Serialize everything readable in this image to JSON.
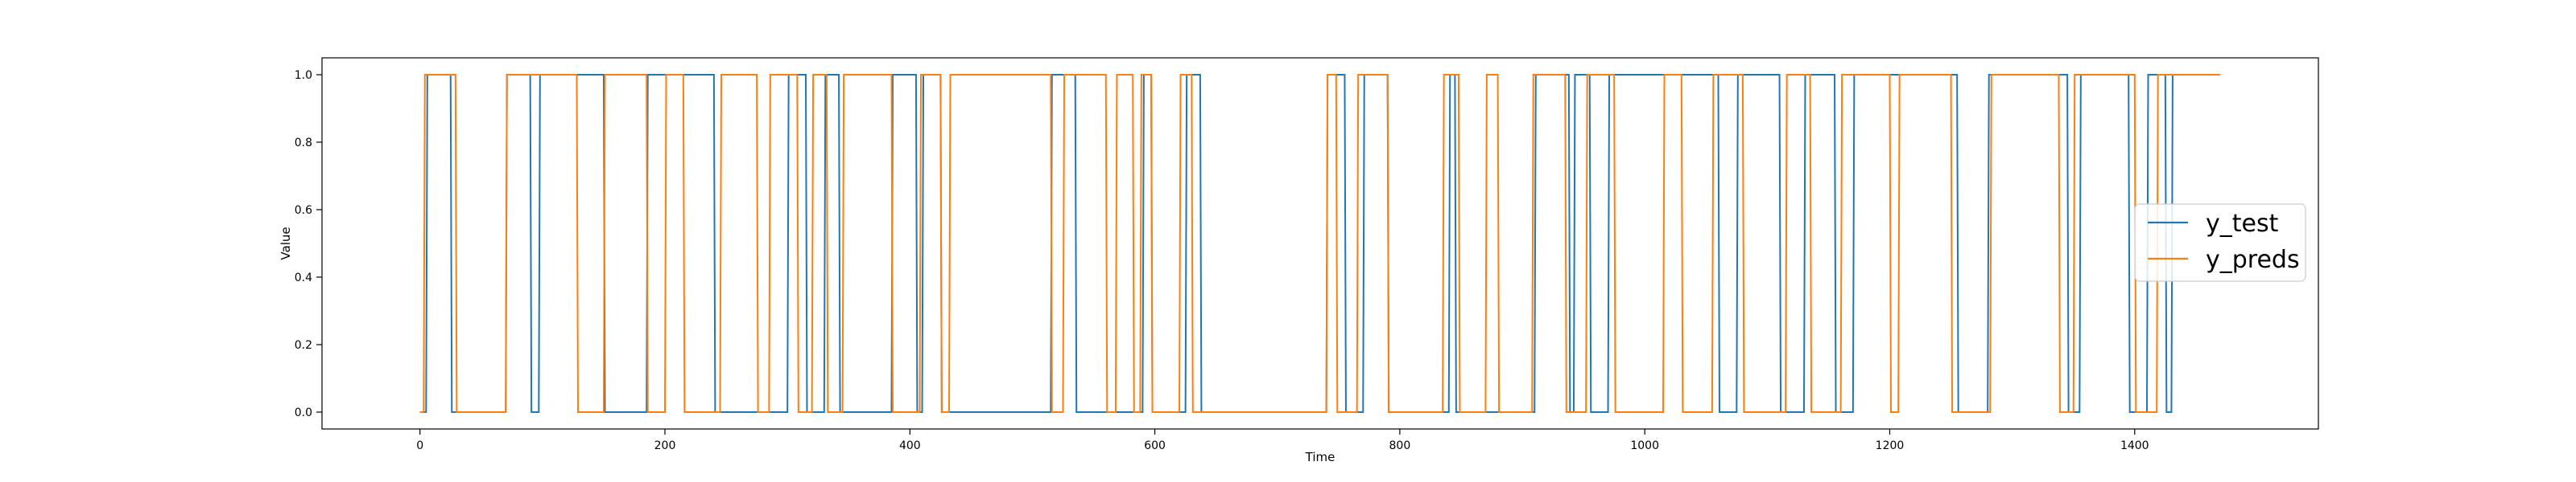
{
  "chart_data": {
    "type": "line",
    "xlabel": "Time",
    "ylabel": "Value",
    "xlim": [
      -80,
      1550
    ],
    "ylim": [
      -0.05,
      1.05
    ],
    "xticks": [
      0,
      200,
      400,
      600,
      800,
      1000,
      1200,
      1400
    ],
    "xtick_labels": [
      "0",
      "200",
      "400",
      "600",
      "800",
      "1000",
      "1200",
      "1400"
    ],
    "yticks": [
      0.0,
      0.2,
      0.4,
      0.6,
      0.8,
      1.0
    ],
    "ytick_labels": [
      "0.0",
      "0.2",
      "0.4",
      "0.6",
      "0.8",
      "1.0"
    ],
    "grid": false,
    "legend_position": "center-right",
    "series": [
      {
        "name": "y_test",
        "color": "#1f77b4",
        "x": [
          0,
          5,
          6,
          25,
          26,
          70,
          71,
          90,
          91,
          97,
          98,
          110,
          111,
          150,
          151,
          185,
          186,
          240,
          241,
          300,
          301,
          315,
          316,
          330,
          331,
          342,
          343,
          385,
          386,
          405,
          406,
          410,
          411,
          425,
          426,
          515,
          516,
          535,
          536,
          590,
          591,
          597,
          598,
          625,
          626,
          637,
          638,
          740,
          741,
          755,
          756,
          770,
          771,
          790,
          791,
          840,
          841,
          845,
          846,
          910,
          911,
          938,
          939,
          942,
          943,
          955,
          956,
          970,
          971,
          1060,
          1061,
          1075,
          1076,
          1110,
          1111,
          1130,
          1131,
          1155,
          1156,
          1170,
          1171,
          1255,
          1256,
          1280,
          1281,
          1345,
          1346,
          1355,
          1356,
          1395,
          1396,
          1410,
          1411,
          1425,
          1426,
          1430,
          1431
        ],
        "y": [
          0,
          0,
          1,
          1,
          0,
          0,
          1,
          1,
          0,
          0,
          1,
          1,
          1,
          1,
          0,
          0,
          1,
          1,
          0,
          0,
          1,
          1,
          0,
          0,
          1,
          1,
          0,
          0,
          1,
          1,
          0,
          0,
          1,
          1,
          0,
          0,
          1,
          1,
          0,
          0,
          1,
          1,
          0,
          0,
          1,
          1,
          0,
          0,
          1,
          1,
          0,
          0,
          1,
          1,
          0,
          0,
          1,
          1,
          0,
          0,
          1,
          1,
          0,
          0,
          1,
          1,
          0,
          0,
          1,
          1,
          0,
          0,
          1,
          1,
          0,
          0,
          1,
          1,
          0,
          0,
          1,
          1,
          0,
          0,
          1,
          1,
          0,
          0,
          1,
          1,
          0,
          0,
          1,
          1,
          0,
          0,
          1
        ]
      },
      {
        "name": "y_preds",
        "color": "#ff7f0e",
        "x": [
          0,
          3,
          4,
          29,
          30,
          70,
          71,
          92,
          93,
          128,
          129,
          150,
          151,
          185,
          186,
          200,
          201,
          215,
          216,
          245,
          246,
          275,
          276,
          285,
          286,
          308,
          309,
          320,
          321,
          332,
          333,
          345,
          346,
          385,
          386,
          408,
          409,
          425,
          426,
          432,
          433,
          515,
          516,
          525,
          526,
          560,
          561,
          568,
          569,
          582,
          583,
          588,
          589,
          597,
          598,
          620,
          621,
          630,
          631,
          740,
          741,
          748,
          749,
          765,
          766,
          790,
          791,
          835,
          836,
          848,
          849,
          870,
          871,
          880,
          881,
          908,
          909,
          935,
          936,
          952,
          953,
          975,
          976,
          1015,
          1016,
          1030,
          1031,
          1055,
          1056,
          1080,
          1081,
          1115,
          1116,
          1135,
          1136,
          1160,
          1161,
          1200,
          1201,
          1207,
          1208,
          1250,
          1251,
          1282,
          1283,
          1338,
          1339,
          1350,
          1351,
          1400,
          1401,
          1418,
          1419,
          1470
        ],
        "y": [
          0,
          0,
          1,
          1,
          0,
          0,
          1,
          1,
          1,
          1,
          0,
          0,
          1,
          1,
          0,
          0,
          1,
          1,
          0,
          0,
          1,
          1,
          0,
          0,
          1,
          1,
          0,
          0,
          1,
          1,
          0,
          0,
          1,
          1,
          0,
          0,
          1,
          1,
          0,
          0,
          1,
          1,
          0,
          0,
          1,
          1,
          0,
          0,
          1,
          1,
          0,
          0,
          1,
          1,
          0,
          0,
          1,
          1,
          0,
          0,
          1,
          1,
          0,
          0,
          1,
          1,
          0,
          0,
          1,
          1,
          0,
          0,
          1,
          1,
          0,
          0,
          1,
          1,
          0,
          0,
          1,
          1,
          0,
          0,
          1,
          1,
          0,
          0,
          1,
          1,
          0,
          0,
          1,
          1,
          0,
          0,
          1,
          1,
          0,
          0,
          1,
          1,
          0,
          0,
          1,
          1,
          0,
          0,
          1,
          1,
          0,
          0,
          1,
          1
        ]
      }
    ]
  }
}
